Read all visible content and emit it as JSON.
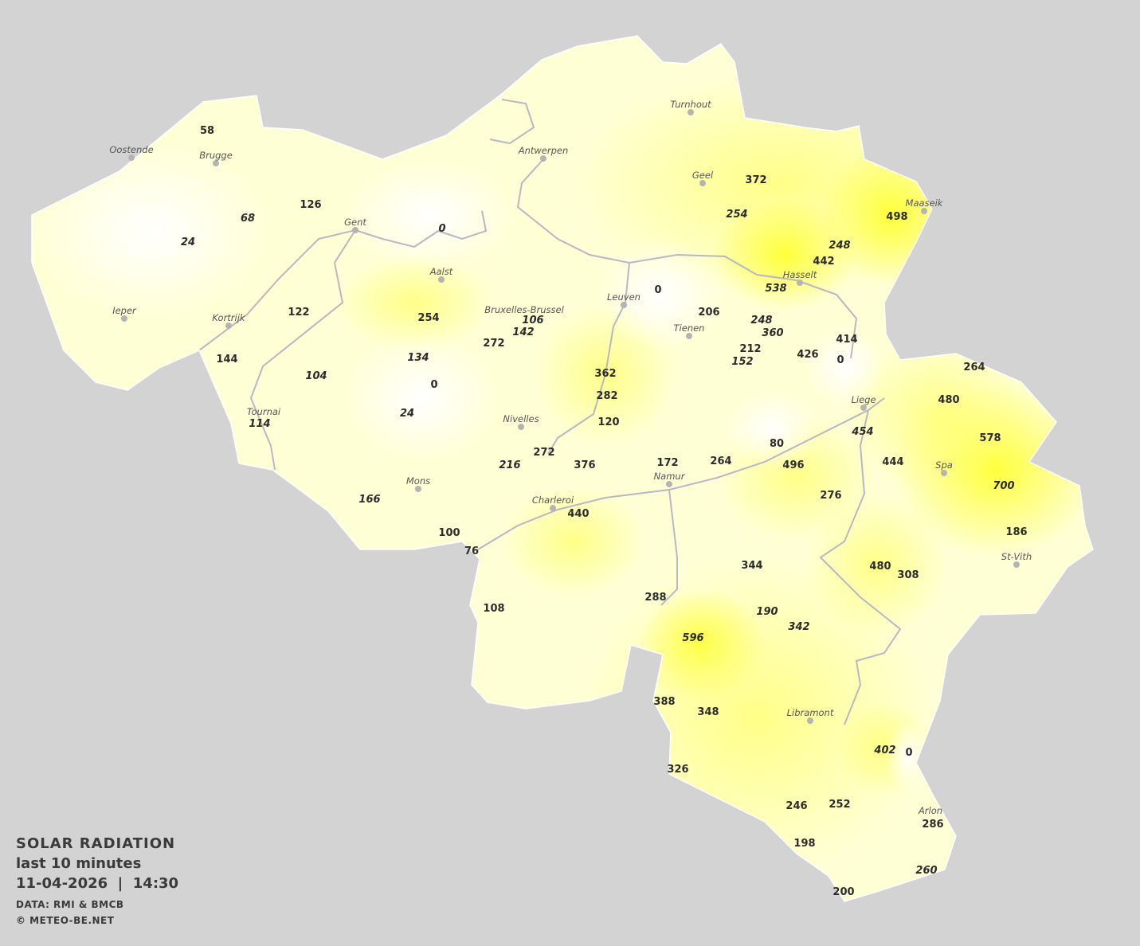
{
  "legend": {
    "title": "SOLAR RADIATION",
    "period": "last 10 minutes",
    "datetime": "11-04-2026  |  14:30",
    "source": "DATA: RMI & BMCB",
    "copyright": "© METEO-BE.NET"
  },
  "colors": {
    "background": "#d3d3d3",
    "low": "#ffffff",
    "high": "#ffff33",
    "borders": "#b8b8c4"
  },
  "cities": [
    "Oostende",
    "Brugge",
    "Gent",
    "Antwerpen",
    "Turnhout",
    "Geel",
    "Maaseik",
    "Hasselt",
    "Leuven",
    "Bruxelles-Brussel",
    "Aalst",
    "Ieper",
    "Kortrijk",
    "Tienen",
    "Liege",
    "Tournai",
    "Nivelles",
    "Mons",
    "Charleroi",
    "Namur",
    "Spa",
    "St-Vith",
    "Libramont",
    "Arlon"
  ],
  "stations": [
    58,
    126,
    68,
    24,
    0,
    122,
    144,
    104,
    254,
    134,
    0,
    24,
    114,
    106,
    142,
    272,
    362,
    282,
    120,
    272,
    216,
    376,
    172,
    264,
    80,
    496,
    0,
    206,
    248,
    360,
    212,
    152,
    426,
    0,
    414,
    442,
    538,
    248,
    372,
    254,
    498,
    264,
    480,
    578,
    454,
    444,
    700,
    186,
    276,
    480,
    308,
    344,
    190,
    342,
    596,
    288,
    440,
    166,
    100,
    76,
    108,
    388,
    348,
    326,
    402,
    0,
    246,
    252,
    286,
    198,
    260,
    200
  ]
}
